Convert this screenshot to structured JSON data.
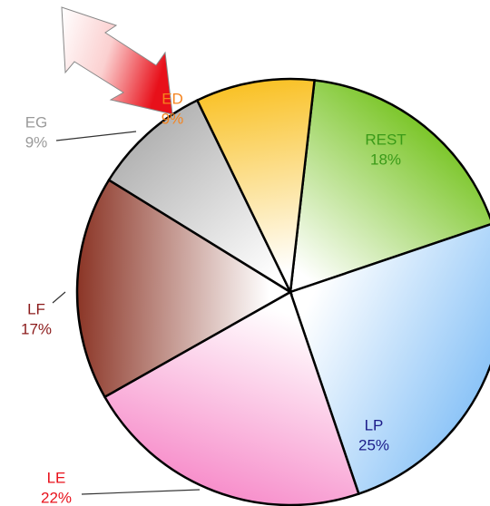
{
  "chart_data": {
    "type": "pie",
    "categories": [
      "REST",
      "LP",
      "LE",
      "LF",
      "EG",
      "ED"
    ],
    "values": [
      18,
      25,
      22,
      17,
      9,
      9
    ],
    "value_labels": [
      "18%",
      "25%",
      "22%",
      "17%",
      "9%",
      "9%"
    ],
    "colors": [
      "#7cc62a",
      "#8cc4f7",
      "#f78fcb",
      "#8b3526",
      "#b3b3b3",
      "#f9c125"
    ],
    "label_colors": [
      "#3a9a18",
      "#1c1c8a",
      "#e8101a",
      "#8b1a1a",
      "#9a9a9a",
      "#f5841e"
    ]
  }
}
